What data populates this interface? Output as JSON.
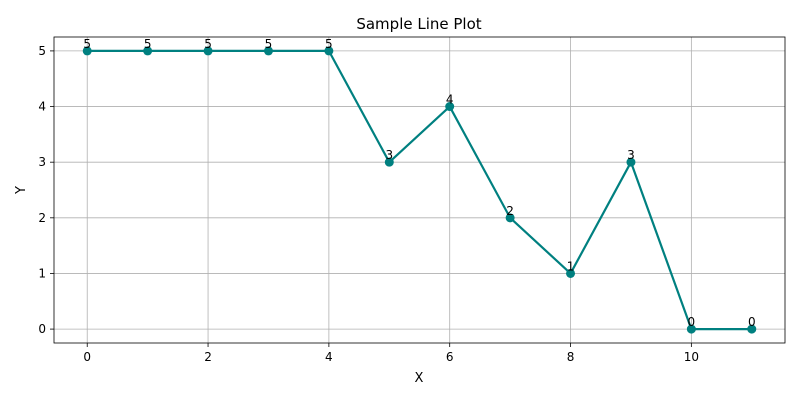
{
  "chart_data": {
    "type": "line",
    "title": "Sample Line Plot",
    "xlabel": "X",
    "ylabel": "Y",
    "x": [
      0,
      1,
      2,
      3,
      4,
      5,
      6,
      7,
      8,
      9,
      10,
      11
    ],
    "series": [
      {
        "values": [
          5,
          5,
          5,
          5,
          5,
          3,
          4,
          2,
          1,
          3,
          0,
          0
        ],
        "color": "#008080",
        "marker": "circle"
      }
    ],
    "data_labels": [
      "5",
      "5",
      "5",
      "5",
      "5",
      "3",
      "4",
      "2",
      "1",
      "3",
      "0",
      "0"
    ],
    "xlim": [
      -0.55,
      11.55
    ],
    "ylim": [
      -0.25,
      5.25
    ],
    "xticks": [
      0,
      2,
      4,
      6,
      8,
      10
    ],
    "yticks": [
      0,
      1,
      2,
      3,
      4,
      5
    ],
    "xtick_labels": [
      "0",
      "2",
      "4",
      "6",
      "8",
      "10"
    ],
    "ytick_labels": [
      "0",
      "1",
      "2",
      "3",
      "4",
      "5"
    ],
    "grid": true,
    "legend": "none"
  }
}
